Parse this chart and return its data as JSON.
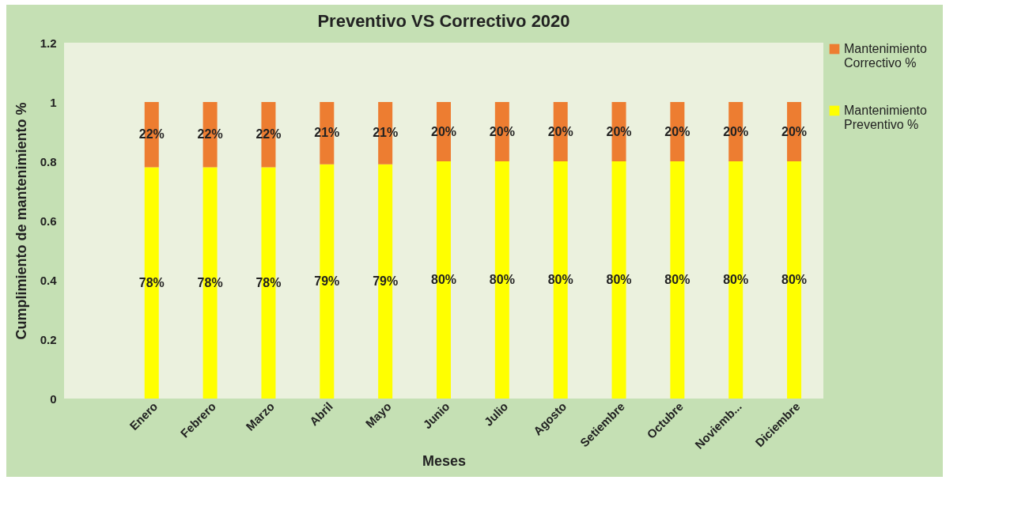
{
  "chart_data": {
    "type": "bar",
    "title": "Preventivo VS Correctivo 2020",
    "xlabel": "Meses",
    "ylabel": "Cumplimiento de mantenimiento %",
    "categories": [
      null,
      "Enero",
      "Febrero",
      "Marzo",
      "Abril",
      "Mayo",
      "Junio",
      "Julio",
      "Agosto",
      "Setiembre",
      "Octubre",
      "Noviemb...",
      "Diciembre"
    ],
    "stacked": true,
    "ylim": [
      0,
      1.2
    ],
    "yticks": [
      0,
      0.2,
      0.4,
      0.6,
      0.8,
      1,
      1.2
    ],
    "grid": false,
    "legend": "right",
    "series": [
      {
        "name": "Mantenimiento Preventivo %",
        "color": "#ffff00",
        "values": [
          null,
          0.78,
          0.78,
          0.78,
          0.79,
          0.79,
          0.8,
          0.8,
          0.8,
          0.8,
          0.8,
          0.8,
          0.8
        ],
        "value_labels": [
          null,
          "78%",
          "78%",
          "78%",
          "79%",
          "79%",
          "80%",
          "80%",
          "80%",
          "80%",
          "80%",
          "80%",
          "80%"
        ]
      },
      {
        "name": "Mantenimiento Correctivo %",
        "color": "#ed7d31",
        "values": [
          null,
          0.22,
          0.22,
          0.22,
          0.21,
          0.21,
          0.2,
          0.2,
          0.2,
          0.2,
          0.2,
          0.2,
          0.2
        ],
        "value_labels": [
          null,
          "22%",
          "22%",
          "22%",
          "21%",
          "21%",
          "20%",
          "20%",
          "20%",
          "20%",
          "20%",
          "20%",
          "20%"
        ]
      }
    ]
  }
}
